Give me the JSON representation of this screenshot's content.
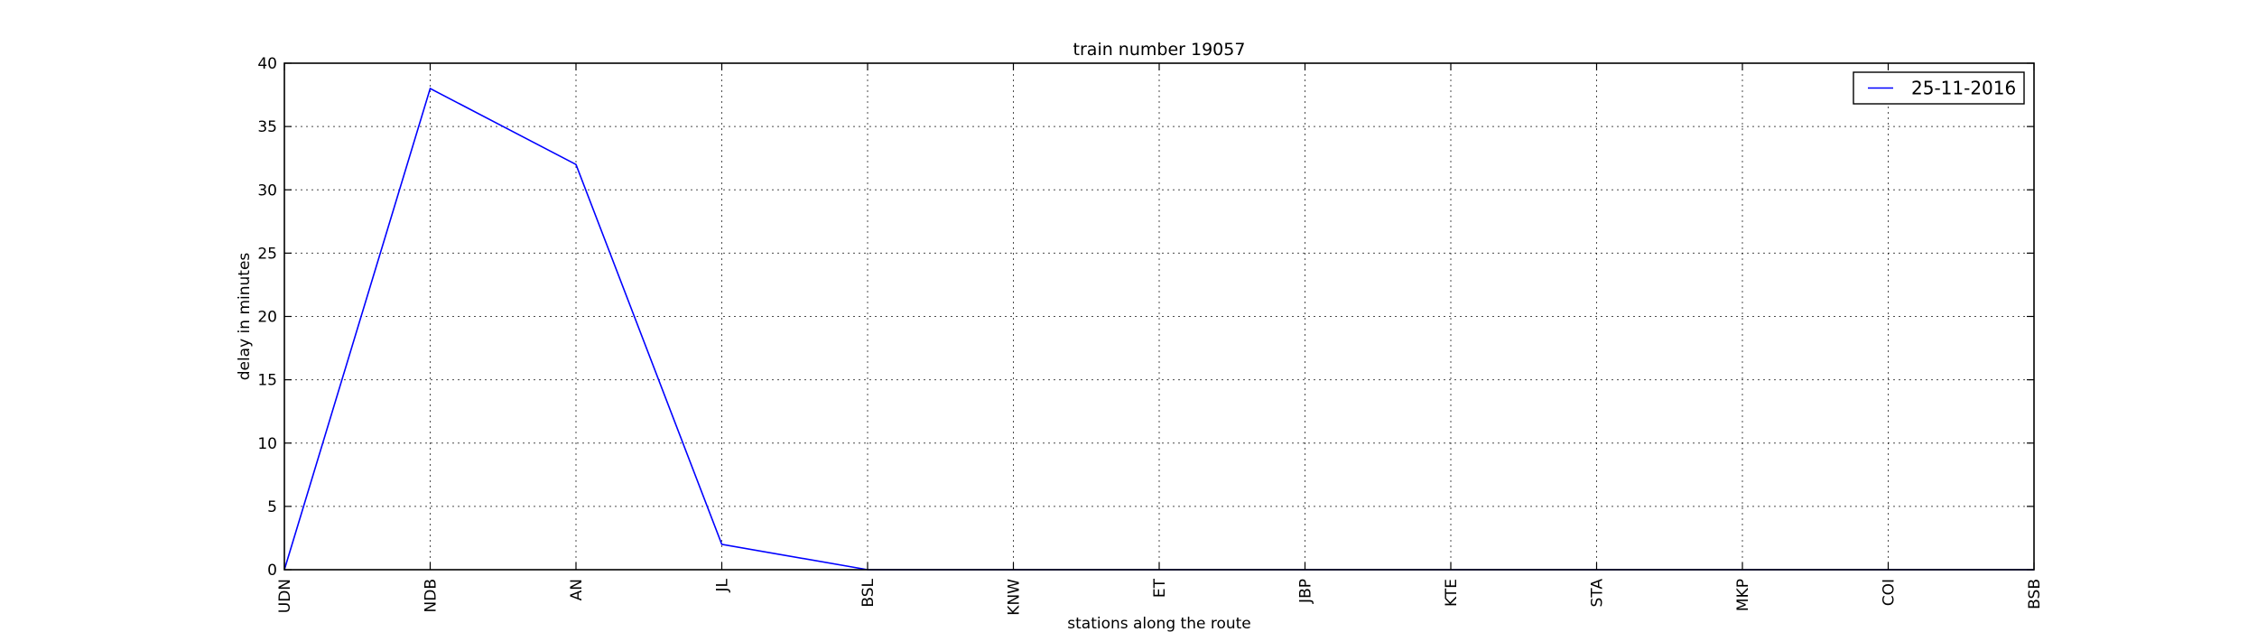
{
  "chart_data": {
    "type": "line",
    "title": "train number 19057",
    "xlabel": "stations along the route",
    "ylabel": "delay in minutes",
    "categories": [
      "UDN",
      "NDB",
      "AN",
      "JL",
      "BSL",
      "KNW",
      "ET",
      "JBP",
      "KTE",
      "STA",
      "MKP",
      "COI",
      "BSB"
    ],
    "series": [
      {
        "name": "25-11-2016",
        "color": "#0000ff",
        "values": [
          0,
          38,
          32,
          2,
          0,
          0,
          0,
          0,
          0,
          0,
          0,
          0,
          0
        ]
      }
    ],
    "ylim": [
      0,
      40
    ],
    "yticks": [
      0,
      5,
      10,
      15,
      20,
      25,
      30,
      35,
      40
    ],
    "grid": true,
    "legend_position": "top-right"
  }
}
